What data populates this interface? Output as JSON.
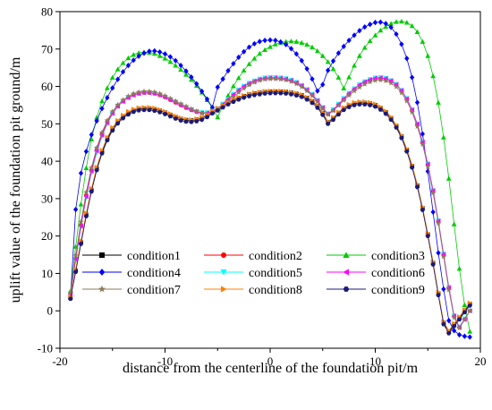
{
  "chart_data": {
    "type": "line",
    "xlabel": "distance from the centerline of the foundation pit/m",
    "ylabel": "uplift value of the foundation pit ground/m",
    "xlim": [
      -20,
      20
    ],
    "ylim": [
      -10,
      80
    ],
    "x_ticks": [
      "-20",
      "-10",
      "0",
      "10",
      "20"
    ],
    "y_ticks": [
      "-10",
      "0",
      "10",
      "20",
      "30",
      "40",
      "50",
      "60",
      "70",
      "80"
    ],
    "grid": false,
    "legend_placement": "lower-left, 3 columns",
    "x": [
      -19,
      -18.5,
      -18,
      -17.5,
      -17,
      -16.5,
      -16,
      -15.5,
      -15,
      -14.5,
      -14,
      -13.5,
      -13,
      -12.5,
      -12,
      -11.5,
      -11,
      -10.5,
      -10,
      -9.5,
      -9,
      -8.5,
      -8,
      -7.5,
      -7,
      -6.5,
      -6,
      -5.5,
      -5,
      -4.5,
      -4,
      -3.5,
      -3,
      -2.5,
      -2,
      -1.5,
      -1,
      -0.5,
      0,
      0.5,
      1,
      1.5,
      2,
      2.5,
      3,
      3.5,
      4,
      4.5,
      5,
      5.5,
      6,
      6.5,
      7,
      7.5,
      8,
      8.5,
      9,
      9.5,
      10,
      10.5,
      11,
      11.5,
      12,
      12.5,
      13,
      13.5,
      14,
      14.5,
      15,
      15.5,
      16,
      16.5,
      17,
      17.5,
      18,
      18.5,
      19
    ],
    "series": [
      {
        "name": "condition1",
        "color": "#000000",
        "marker": "square",
        "values": [
          3.5,
          10.8,
          18.3,
          25.7,
          32.3,
          38,
          42.5,
          46,
          48.6,
          50.5,
          51.9,
          52.9,
          53.6,
          54,
          54.1,
          54.1,
          53.9,
          53.5,
          53,
          52.4,
          51.8,
          51.3,
          51,
          50.9,
          51.1,
          51.5,
          52.2,
          53.2,
          54,
          54.8,
          55.6,
          56.3,
          56.9,
          57.4,
          57.8,
          58.1,
          58.3,
          58.5,
          58.6,
          58.6,
          58.6,
          58.5,
          58.3,
          58,
          57.6,
          56.9,
          56,
          54.7,
          52.8,
          50.4,
          51.5,
          52.9,
          54.1,
          54.9,
          55.4,
          55.6,
          55.6,
          55.4,
          55,
          54.2,
          53.1,
          51.5,
          49.4,
          46.6,
          43,
          38.7,
          33.5,
          27.4,
          20.4,
          12.8,
          4.6,
          -3.2,
          -5.6,
          -3.7,
          -1.9,
          0,
          1.8
        ]
      },
      {
        "name": "condition2",
        "color": "#ff0000",
        "marker": "circle",
        "values": [
          4.7,
          14,
          22.9,
          30.9,
          37.7,
          43.1,
          47.3,
          50.5,
          52.9,
          54.7,
          56,
          57,
          57.7,
          58.1,
          58.3,
          58.3,
          58.1,
          57.7,
          57.1,
          56.4,
          55.7,
          55,
          54.3,
          53.7,
          53.2,
          52.9,
          52.9,
          53.2,
          54,
          55.2,
          56.5,
          57.8,
          59,
          60,
          60.8,
          61.4,
          61.9,
          62.2,
          62.3,
          62.3,
          62.2,
          62,
          61.6,
          61,
          60.2,
          59.1,
          57.8,
          56.2,
          54.3,
          52.6,
          53.7,
          55.2,
          56.7,
          58.1,
          59.3,
          60.4,
          61.2,
          61.8,
          62.2,
          62.3,
          62.1,
          61.5,
          60.5,
          58.9,
          56.7,
          53.7,
          49.9,
          45.1,
          39.2,
          32.1,
          24,
          15.1,
          6.2,
          -1.4,
          -4.4,
          -2.2,
          0
        ]
      },
      {
        "name": "condition3",
        "color": "#00cc00",
        "marker": "triangle-up",
        "values": [
          5.3,
          17.2,
          28.5,
          38.2,
          45.9,
          51.7,
          56.1,
          59.6,
          62.4,
          64.6,
          66.3,
          67.6,
          68.5,
          69,
          69.2,
          69.1,
          68.8,
          68.2,
          67.5,
          66.6,
          65.6,
          64.5,
          63.2,
          61.8,
          60.2,
          58.4,
          56.4,
          54.2,
          51.8,
          54.8,
          57.6,
          60.1,
          62.3,
          64.3,
          66,
          67.5,
          68.8,
          69.8,
          70.6,
          71.3,
          71.7,
          72,
          72.1,
          72,
          71.7,
          71.2,
          70.5,
          69.5,
          68.2,
          66.6,
          64.7,
          62.4,
          59.5,
          62.5,
          65.6,
          68.2,
          70.4,
          72.2,
          73.7,
          75,
          76,
          76.8,
          77.3,
          77.4,
          77.1,
          76.2,
          74.6,
          72,
          68.2,
          62.8,
          55.7,
          46.4,
          35.4,
          23.2,
          11.3,
          1.6,
          -5.5
        ]
      },
      {
        "name": "condition4",
        "color": "#0000ff",
        "marker": "diamond",
        "values": [
          3.4,
          27.1,
          36.8,
          42.6,
          47.1,
          50.8,
          54.1,
          57,
          59.6,
          61.9,
          63.9,
          65.6,
          67,
          68.1,
          68.9,
          69.4,
          69.5,
          69.2,
          68.7,
          67.9,
          66.9,
          65.6,
          64.1,
          62.5,
          60.7,
          58.7,
          56.6,
          54.4,
          59.8,
          62,
          64.2,
          66.1,
          67.8,
          69.3,
          70.5,
          71.4,
          72,
          72.3,
          72.4,
          72.3,
          71.9,
          71.2,
          70.1,
          68.7,
          66.9,
          64.7,
          62,
          58.8,
          60.5,
          64.3,
          66.8,
          68.9,
          70.7,
          72.3,
          73.7,
          74.9,
          75.9,
          76.6,
          77.1,
          77.2,
          76.8,
          75.8,
          74,
          71.3,
          67.5,
          62.4,
          55.7,
          47.3,
          37.3,
          26.4,
          15.5,
          5.8,
          -2.6,
          -5.3,
          -6.4,
          -6.8,
          -7
        ]
      },
      {
        "name": "condition5",
        "color": "#00ffff",
        "marker": "triangle-down",
        "values": [
          4.2,
          13.5,
          22.3,
          30.2,
          36.9,
          42.3,
          46.6,
          50,
          52.6,
          54.6,
          56,
          57,
          57.7,
          58.1,
          58.3,
          58.3,
          58.1,
          57.7,
          57.1,
          56.5,
          55.8,
          55.1,
          54.4,
          53.8,
          53.3,
          53,
          53,
          53.4,
          54.1,
          55.3,
          56.6,
          57.9,
          59.1,
          60.1,
          60.9,
          61.5,
          62,
          62.3,
          62.4,
          62.4,
          62.3,
          62.1,
          61.7,
          61.1,
          60.3,
          59.2,
          57.9,
          56.3,
          54.4,
          52.7,
          53.8,
          55.3,
          56.8,
          58.2,
          59.4,
          60.5,
          61.3,
          61.9,
          62.3,
          62.4,
          62.2,
          61.6,
          60.6,
          59,
          56.8,
          53.8,
          50,
          45.2,
          39.3,
          32.2,
          24.1,
          15.2,
          6.3,
          -1.3,
          -4.3,
          -2.1,
          0
        ]
      },
      {
        "name": "condition6",
        "color": "#ff00ff",
        "marker": "triangle-left",
        "values": [
          4.5,
          13.8,
          22.7,
          30.6,
          37.4,
          42.8,
          47,
          50.3,
          52.8,
          54.7,
          56,
          57,
          57.7,
          58.1,
          58.3,
          58.3,
          58.1,
          57.7,
          57.1,
          56.4,
          55.7,
          55,
          54.3,
          53.7,
          53.2,
          52.9,
          52.9,
          53.2,
          54,
          55.2,
          56.5,
          57.8,
          59,
          60,
          60.8,
          61.4,
          61.9,
          62.2,
          62.3,
          62.3,
          62.2,
          62,
          61.6,
          61,
          60.2,
          59.1,
          57.8,
          56.2,
          54.3,
          52.6,
          53.7,
          55.2,
          56.7,
          58.1,
          59.3,
          60.4,
          61.2,
          61.8,
          62.2,
          62.3,
          62.1,
          61.5,
          60.5,
          58.9,
          56.7,
          53.7,
          49.9,
          45.1,
          39.2,
          32.1,
          24,
          15.1,
          6.2,
          -1.4,
          -4.4,
          -2.2,
          0
        ]
      },
      {
        "name": "condition7",
        "color": "#8b7a5b",
        "marker": "star",
        "values": [
          4.9,
          14.8,
          23.8,
          31.7,
          38.3,
          43.6,
          47.7,
          50.9,
          53.3,
          55.1,
          56.4,
          57.4,
          58.1,
          58.5,
          58.7,
          58.7,
          58.5,
          58.1,
          57.5,
          56.8,
          56.1,
          55.4,
          54.7,
          54,
          53.4,
          52.9,
          52.7,
          52.9,
          53.5,
          54.6,
          55.9,
          57.2,
          58.4,
          59.5,
          60.4,
          61.1,
          61.6,
          61.9,
          62,
          62,
          61.9,
          61.7,
          61.3,
          60.7,
          59.9,
          58.8,
          57.5,
          55.9,
          54,
          52.5,
          53.5,
          54.9,
          56.3,
          57.6,
          58.8,
          59.8,
          60.6,
          61.2,
          61.6,
          61.7,
          61.5,
          60.9,
          59.9,
          58.3,
          56.1,
          53.1,
          49.3,
          44.5,
          38.6,
          31.5,
          23.4,
          14.5,
          5.6,
          -1.8,
          -4.6,
          -2.4,
          0
        ]
      },
      {
        "name": "condition8",
        "color": "#ff8000",
        "marker": "triangle-right",
        "values": [
          3.8,
          11.2,
          18.7,
          26.1,
          32.7,
          38.4,
          42.9,
          46.4,
          49,
          50.9,
          52.3,
          53.3,
          53.9,
          54.3,
          54.4,
          54.4,
          54.2,
          53.8,
          53.3,
          52.7,
          52.1,
          51.6,
          51.2,
          51.1,
          51.3,
          51.7,
          52.4,
          53.4,
          54.2,
          55,
          55.8,
          56.5,
          57.1,
          57.6,
          58,
          58.3,
          58.5,
          58.7,
          58.8,
          58.8,
          58.8,
          58.7,
          58.5,
          58.2,
          57.8,
          57.1,
          56.2,
          54.9,
          53,
          50.6,
          51.7,
          53.1,
          54.3,
          55.2,
          55.7,
          55.9,
          55.9,
          55.7,
          55.3,
          54.5,
          53.4,
          51.8,
          49.7,
          46.9,
          43.3,
          39,
          33.8,
          27.7,
          20.7,
          13.1,
          4.9,
          -2.9,
          -5.3,
          -3.4,
          -1.6,
          0.3,
          2.1
        ]
      },
      {
        "name": "condition9",
        "color": "#1a1a7a",
        "marker": "hexagon",
        "values": [
          3.2,
          10.4,
          17.9,
          25.3,
          31.9,
          37.6,
          42.1,
          45.6,
          48.2,
          50.1,
          51.5,
          52.5,
          53.2,
          53.6,
          53.7,
          53.7,
          53.5,
          53.1,
          52.6,
          52,
          51.4,
          50.9,
          50.6,
          50.5,
          50.7,
          51.1,
          51.8,
          52.8,
          53.6,
          54.4,
          55.2,
          55.9,
          56.5,
          57,
          57.4,
          57.7,
          57.9,
          58.1,
          58.2,
          58.2,
          58.2,
          58.1,
          57.9,
          57.6,
          57.2,
          56.5,
          55.6,
          54.3,
          52.4,
          50,
          51.1,
          52.5,
          53.7,
          54.5,
          55,
          55.2,
          55.2,
          55,
          54.6,
          53.8,
          52.7,
          51.1,
          49,
          46.2,
          42.6,
          38.3,
          33.1,
          27,
          20,
          12.4,
          4.2,
          -3.6,
          -6,
          -4.1,
          -2.3,
          -0.4,
          1.4
        ]
      }
    ]
  }
}
